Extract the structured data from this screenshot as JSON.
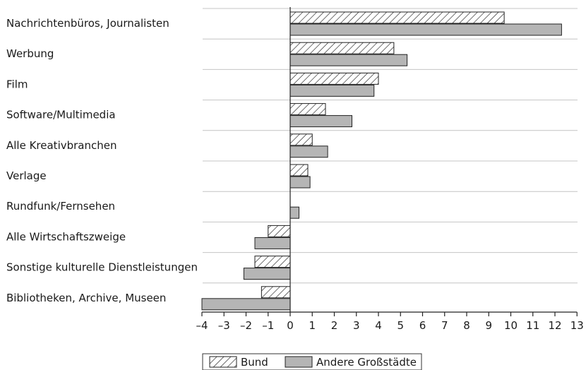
{
  "chart_data": {
    "type": "bar",
    "orientation": "horizontal",
    "title": "",
    "xlabel": "",
    "ylabel": "",
    "xlim": [
      -4,
      13
    ],
    "xticks": [
      -4,
      -3,
      -2,
      -1,
      0,
      1,
      2,
      3,
      4,
      5,
      6,
      7,
      8,
      9,
      10,
      11,
      12,
      13
    ],
    "xtick_labels": [
      "–4",
      "–3",
      "–2",
      "–1",
      "0",
      "1",
      "2",
      "3",
      "4",
      "5",
      "6",
      "7",
      "8",
      "9",
      "10",
      "11",
      "12",
      "13"
    ],
    "grid": false,
    "legend_position": "bottom",
    "categories": [
      "Nachrichtenbüros, Journalisten",
      "Werbung",
      "Film",
      "Software/Multimedia",
      "Alle Kreativbranchen",
      "Verlage",
      "Rundfunk/Fernsehen",
      "Alle Wirtschaftszweige",
      "Sonstige kulturelle Dienstleistungen",
      "Bibliotheken, Archive, Museen"
    ],
    "series": [
      {
        "name": "Bund",
        "style": "hatched",
        "values": [
          9.7,
          4.7,
          4.0,
          1.6,
          1.0,
          0.8,
          0.0,
          -1.0,
          -1.6,
          -1.3
        ]
      },
      {
        "name": "Andere Großstädte",
        "style": "gray",
        "color": "#b5b5b5",
        "values": [
          12.3,
          5.3,
          3.8,
          2.8,
          1.7,
          0.9,
          0.4,
          -1.6,
          -2.1,
          -4.0
        ]
      }
    ]
  }
}
